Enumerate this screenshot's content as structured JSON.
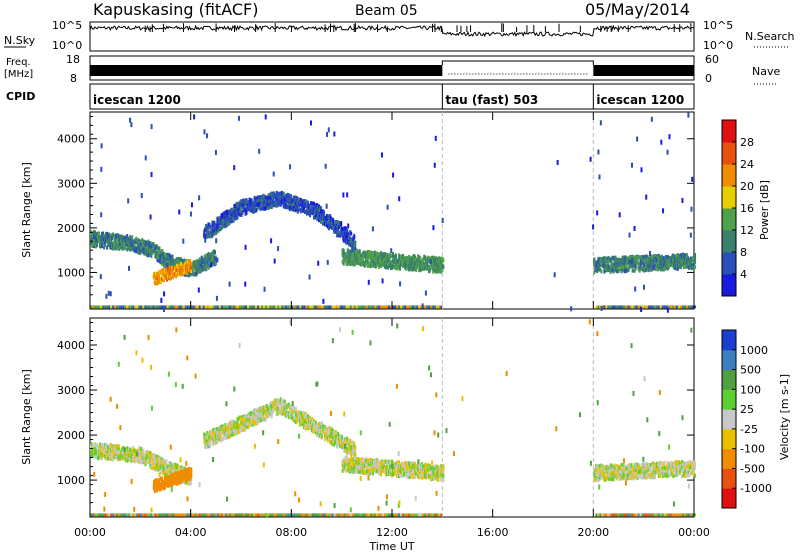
{
  "header": {
    "station": "Kapuskasing (fitACF)",
    "beam": "Beam 05",
    "date": "05/May/2014"
  },
  "strips": {
    "nsky_label": "N.Sky",
    "nsky_ticks": [
      "10^5",
      "10^0"
    ],
    "nsearch_label": "N.Search",
    "nsearch_ticks": [
      "10^5",
      "10^0"
    ],
    "freq_label_1": "Freq.",
    "freq_label_2": "[MHz]",
    "freq_ticks": [
      "18",
      "8"
    ],
    "nave_label": "Nave",
    "nave_ticks": [
      "60",
      "0"
    ],
    "cpid_label": "CPID",
    "cpid_segments": [
      {
        "name": "icescan 1200",
        "start": 0,
        "end": 14
      },
      {
        "name": "tau (fast) 503",
        "start": 14,
        "end": 20
      },
      {
        "name": "icescan 1200",
        "start": 20,
        "end": 24
      }
    ]
  },
  "chart_data": [
    {
      "type": "heatmap",
      "panel": "power",
      "ylabel": "Slant Range [km]",
      "xlim": [
        0,
        24
      ],
      "ylim": [
        180,
        4600
      ],
      "yticks": [
        "1000",
        "2000",
        "3000",
        "4000"
      ],
      "colorbar_label": "Power [dB]",
      "colorbar_ticks": [
        "4",
        "8",
        "12",
        "16",
        "20",
        "24",
        "28"
      ],
      "colorbar_range": [
        0,
        30
      ],
      "colors": [
        "#1a1adf",
        "#2a4fb8",
        "#3b7f6e",
        "#4fa24a",
        "#e8d000",
        "#f08c00",
        "#e85010",
        "#e01010"
      ],
      "features": [
        {
          "desc": "main band",
          "t": [
            0.0,
            1.5,
            2.5,
            3.0,
            4.0,
            5.0
          ],
          "range_km": [
            1800,
            1700,
            1550,
            1300,
            1100,
            1400
          ],
          "dB": 10
        },
        {
          "desc": "intense spot",
          "t": [
            2.5,
            4.0
          ],
          "range_km": [
            900,
            1200
          ],
          "dB": 22
        },
        {
          "desc": "arc",
          "t": [
            4.5,
            6.0,
            7.5,
            9.0,
            10.5
          ],
          "range_km": [
            1900,
            2500,
            2700,
            2400,
            1700
          ],
          "dB": 6
        },
        {
          "desc": "late band",
          "t": [
            10.0,
            12.0,
            14.0
          ],
          "range_km": [
            1400,
            1300,
            1200
          ],
          "dB": 12
        },
        {
          "desc": "post band",
          "t": [
            20.0,
            22.0,
            24.0
          ],
          "range_km": [
            1200,
            1250,
            1300
          ],
          "dB": 10
        }
      ]
    },
    {
      "type": "heatmap",
      "panel": "velocity",
      "ylabel": "Slant Range [km]",
      "xlabel": "Time UT",
      "xlim": [
        0,
        24
      ],
      "xticks": [
        "00:00",
        "04:00",
        "08:00",
        "12:00",
        "16:00",
        "20:00",
        "00:00"
      ],
      "ylim": [
        180,
        4600
      ],
      "yticks": [
        "1000",
        "2000",
        "3000",
        "4000"
      ],
      "colorbar_label": "Velocity [m s-1]",
      "colorbar_ticks": [
        "1000",
        "500",
        "100",
        "25",
        "-25",
        "-100",
        "-500",
        "-1000"
      ],
      "colors": [
        "#1a3fd0",
        "#3b7fc0",
        "#4fa040",
        "#5cd030",
        "#c8c8c8",
        "#e8c000",
        "#f08c00",
        "#e85010",
        "#e01010"
      ],
      "features": [
        {
          "desc": "main band",
          "t": [
            0.0,
            2.0,
            3.0,
            4.0
          ],
          "range_km": [
            1700,
            1600,
            1300,
            1100
          ],
          "v": 0
        },
        {
          "desc": "intense spot",
          "t": [
            2.5,
            4.0
          ],
          "range_km": [
            900,
            1200
          ],
          "v": -400
        },
        {
          "desc": "arc",
          "t": [
            4.5,
            7.5,
            10.5
          ],
          "range_km": [
            1900,
            2700,
            1700
          ],
          "v": 0
        },
        {
          "desc": "late band",
          "t": [
            10.0,
            14.0
          ],
          "range_km": [
            1400,
            1200
          ],
          "v": 0
        },
        {
          "desc": "post band",
          "t": [
            20.0,
            24.0
          ],
          "range_km": [
            1200,
            1300
          ],
          "v": 0
        }
      ]
    }
  ]
}
